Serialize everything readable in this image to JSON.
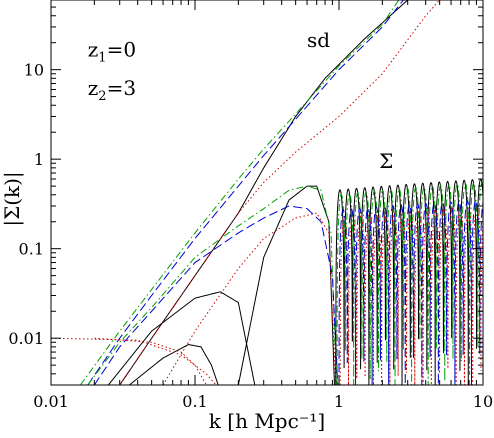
{
  "chart_data": {
    "type": "line",
    "title": "",
    "xlabel": "k  [h Mpc⁻¹]",
    "ylabel": "|Σ(k)|",
    "xscale": "log",
    "yscale": "log",
    "xlim": [
      0.01,
      10
    ],
    "ylim": [
      0.003,
      60
    ],
    "grid": false,
    "x_tick_labels": [
      "0.01",
      "0.1",
      "1",
      "10"
    ],
    "y_tick_labels": [
      "0.01",
      "0.1",
      "1",
      "10"
    ],
    "x_ticks": [
      0.01,
      0.1,
      1,
      10
    ],
    "y_ticks": [
      0.01,
      0.1,
      1,
      10
    ],
    "annotations": [
      {
        "id": "z1",
        "text": "z",
        "sub": "1",
        "tail": "=0",
        "at": [
          0.018,
          14
        ]
      },
      {
        "id": "z2",
        "text": "z",
        "sub": "2",
        "tail": "=3",
        "at": [
          0.018,
          5.2
        ]
      },
      {
        "id": "sd",
        "text": "sd",
        "at": [
          0.6,
          18
        ]
      },
      {
        "id": "sigma",
        "text": "Σ",
        "at": [
          1.9,
          0.8
        ]
      }
    ],
    "series": [
      {
        "id": "sd-black",
        "color": "#000000",
        "dash": "",
        "points": [
          [
            0.03,
            0.003
          ],
          [
            0.05,
            0.01
          ],
          [
            0.1,
            0.05
          ],
          [
            0.2,
            0.25
          ],
          [
            0.3,
            0.8
          ],
          [
            0.5,
            3
          ],
          [
            0.8,
            8
          ],
          [
            1.5,
            22
          ],
          [
            3,
            60
          ]
        ]
      },
      {
        "id": "sd-red",
        "color": "#d00000",
        "dash": "1.5 2.5",
        "points": [
          [
            0.03,
            0.003
          ],
          [
            0.05,
            0.01
          ],
          [
            0.1,
            0.05
          ],
          [
            0.2,
            0.25
          ],
          [
            0.3,
            0.55
          ],
          [
            0.5,
            1.2
          ],
          [
            1,
            3
          ],
          [
            2,
            9
          ],
          [
            4,
            40
          ],
          [
            5,
            60
          ]
        ]
      },
      {
        "id": "sd-green",
        "color": "#00a000",
        "dash": "7 3 1.5 3",
        "points": [
          [
            0.016,
            0.003
          ],
          [
            0.03,
            0.012
          ],
          [
            0.05,
            0.035
          ],
          [
            0.1,
            0.15
          ],
          [
            0.2,
            0.6
          ],
          [
            0.3,
            1.3
          ],
          [
            0.5,
            3.2
          ],
          [
            1,
            11
          ],
          [
            2,
            32
          ],
          [
            2.6,
            60
          ]
        ]
      },
      {
        "id": "sd-blue",
        "color": "#0000d0",
        "dash": "9 4",
        "points": [
          [
            0.018,
            0.003
          ],
          [
            0.03,
            0.01
          ],
          [
            0.05,
            0.03
          ],
          [
            0.1,
            0.13
          ],
          [
            0.2,
            0.5
          ],
          [
            0.3,
            1.1
          ],
          [
            0.5,
            2.8
          ],
          [
            1,
            10
          ],
          [
            2,
            30
          ],
          [
            2.8,
            60
          ]
        ]
      },
      {
        "id": "sigma-black-1",
        "color": "#000000",
        "dash": "",
        "points": [
          [
            0.025,
            0.003
          ],
          [
            0.05,
            0.012
          ],
          [
            0.1,
            0.028
          ],
          [
            0.15,
            0.033
          ],
          [
            0.2,
            0.025
          ],
          [
            0.26,
            0.003
          ]
        ]
      },
      {
        "id": "sigma-black-2",
        "color": "#000000",
        "dash": "",
        "points": [
          [
            0.035,
            0.003
          ],
          [
            0.06,
            0.006
          ],
          [
            0.09,
            0.0085
          ],
          [
            0.11,
            0.008
          ],
          [
            0.13,
            0.005
          ],
          [
            0.145,
            0.003
          ]
        ]
      },
      {
        "id": "sigma-black-3",
        "color": "#000000",
        "dash": "",
        "points": [
          [
            0.2,
            0.003
          ],
          [
            0.3,
            0.08
          ],
          [
            0.45,
            0.35
          ],
          [
            0.6,
            0.5
          ],
          [
            0.7,
            0.5
          ],
          [
            0.85,
            0.2
          ],
          [
            0.93,
            0.003
          ]
        ]
      },
      {
        "id": "sigma-red-1",
        "color": "#d00000",
        "dash": "1.5 2.5",
        "points": [
          [
            0.01,
            0.01
          ],
          [
            0.04,
            0.0095
          ],
          [
            0.08,
            0.0065
          ],
          [
            0.12,
            0.004
          ],
          [
            0.14,
            0.003
          ]
        ]
      },
      {
        "id": "sigma-red-2",
        "color": "#d00000",
        "dash": "1.5 2.5",
        "points": [
          [
            0.02,
            0.01
          ],
          [
            0.05,
            0.009
          ],
          [
            0.08,
            0.007
          ],
          [
            0.1,
            0.005
          ],
          [
            0.12,
            0.003
          ]
        ]
      },
      {
        "id": "sigma-red-3",
        "color": "#d00000",
        "dash": "1.5 2.5",
        "points": [
          [
            0.06,
            0.003
          ],
          [
            0.1,
            0.012
          ],
          [
            0.2,
            0.06
          ],
          [
            0.3,
            0.13
          ],
          [
            0.5,
            0.22
          ],
          [
            0.7,
            0.25
          ],
          [
            0.85,
            0.15
          ],
          [
            0.95,
            0.003
          ]
        ]
      },
      {
        "id": "sigma-green-1",
        "color": "#00a000",
        "dash": "7 3 1.5 3",
        "points": [
          [
            0.018,
            0.003
          ],
          [
            0.03,
            0.009
          ],
          [
            0.05,
            0.022
          ],
          [
            0.1,
            0.08
          ],
          [
            0.2,
            0.18
          ],
          [
            0.3,
            0.28
          ],
          [
            0.45,
            0.45
          ],
          [
            0.6,
            0.5
          ],
          [
            0.75,
            0.45
          ],
          [
            0.88,
            0.15
          ],
          [
            0.96,
            0.003
          ]
        ]
      },
      {
        "id": "sigma-blue-1",
        "color": "#0000d0",
        "dash": "9 4",
        "points": [
          [
            0.02,
            0.003
          ],
          [
            0.03,
            0.008
          ],
          [
            0.05,
            0.02
          ],
          [
            0.1,
            0.07
          ],
          [
            0.2,
            0.15
          ],
          [
            0.3,
            0.22
          ],
          [
            0.45,
            0.3
          ],
          [
            0.6,
            0.28
          ],
          [
            0.75,
            0.2
          ],
          [
            0.9,
            0.05
          ],
          [
            0.98,
            0.003
          ]
        ]
      }
    ],
    "oscillations": [
      {
        "id": "osc-black",
        "color": "#000000",
        "dash": "",
        "start": 0.95,
        "end": 10,
        "period_log": 0.0575,
        "amp_start": 0.45,
        "amp_end": 0.6,
        "min_y": 0.003
      },
      {
        "id": "osc-green",
        "color": "#00a000",
        "dash": "7 3 1.5 3",
        "start": 0.97,
        "end": 10,
        "period_log": 0.0575,
        "amp_start": 0.4,
        "amp_end": 0.55,
        "min_y": 0.003
      },
      {
        "id": "osc-blue",
        "color": "#0000d0",
        "dash": "9 4",
        "start": 1.0,
        "end": 10,
        "period_log": 0.0575,
        "amp_start": 0.27,
        "amp_end": 0.35,
        "min_y": 0.003
      },
      {
        "id": "osc-red",
        "color": "#d00000",
        "dash": "1.5 2.5",
        "start": 1.02,
        "end": 10,
        "period_log": 0.0575,
        "amp_start": 0.22,
        "amp_end": 0.3,
        "min_y": 0.003
      }
    ]
  }
}
